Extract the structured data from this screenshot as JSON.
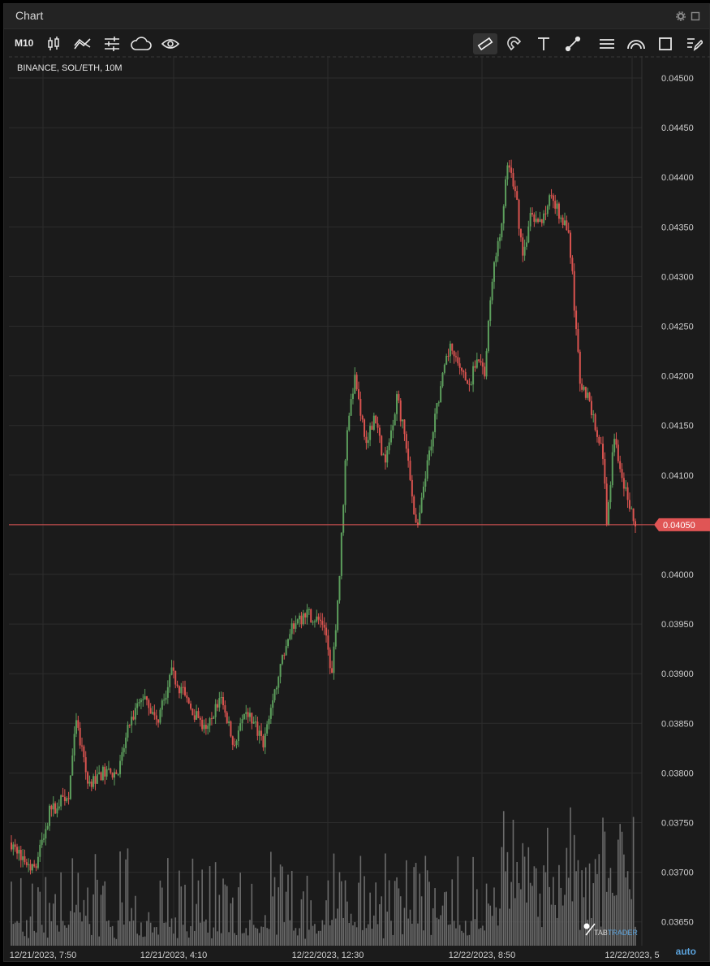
{
  "window": {
    "title": "Chart"
  },
  "toolbar": {
    "interval": "M10",
    "left_tools": [
      "candles-icon",
      "indicators-icon",
      "settings-sliders-icon",
      "cloud-icon",
      "eye-icon"
    ],
    "right_tools": [
      "ruler-icon",
      "magnet-icon",
      "text-icon",
      "line-icon",
      "hlines-icon",
      "arc-icon",
      "rectangle-icon",
      "edit-list-icon"
    ],
    "active_tool": "ruler-icon"
  },
  "chart_data": {
    "type": "candlestick",
    "symbol_label": "BINANCE, SOL/ETH, 10M",
    "y_ticks": [
      "0.04500",
      "0.04450",
      "0.04400",
      "0.04350",
      "0.04300",
      "0.04250",
      "0.04200",
      "0.04150",
      "0.04100",
      "0.04050",
      "0.04000",
      "0.03950",
      "0.03900",
      "0.03850",
      "0.03800",
      "0.03750",
      "0.03700",
      "0.03650"
    ],
    "ylim": [
      0.0363,
      0.04515
    ],
    "x_ticks": [
      "12/21/2023, 7:50",
      "12/21/2023, 4:10",
      "12/22/2023, 12:30",
      "12/22/2023, 8:50",
      "12/22/2023, 5"
    ],
    "current_price": "0.04050",
    "grid": true,
    "colors": {
      "up": "#5c9e5c",
      "down": "#d9534f",
      "volume": "#6b6b6b",
      "price_line": "#e05555",
      "background": "#1b1b1b"
    },
    "price_path": [
      [
        0,
        0.0373
      ],
      [
        12,
        0.037
      ],
      [
        20,
        0.0376
      ],
      [
        30,
        0.0378
      ],
      [
        34,
        0.0385
      ],
      [
        40,
        0.0379
      ],
      [
        48,
        0.038
      ],
      [
        56,
        0.038
      ],
      [
        62,
        0.0385
      ],
      [
        70,
        0.0388
      ],
      [
        76,
        0.0385
      ],
      [
        84,
        0.039
      ],
      [
        90,
        0.0388
      ],
      [
        96,
        0.0386
      ],
      [
        102,
        0.0384
      ],
      [
        110,
        0.0388
      ],
      [
        116,
        0.0383
      ],
      [
        124,
        0.0386
      ],
      [
        132,
        0.0383
      ],
      [
        140,
        0.039
      ],
      [
        148,
        0.0395
      ],
      [
        156,
        0.0396
      ],
      [
        164,
        0.0395
      ],
      [
        168,
        0.039
      ],
      [
        172,
        0.04
      ],
      [
        176,
        0.0415
      ],
      [
        180,
        0.042
      ],
      [
        186,
        0.0413
      ],
      [
        190,
        0.0416
      ],
      [
        196,
        0.0411
      ],
      [
        202,
        0.0418
      ],
      [
        206,
        0.0414
      ],
      [
        212,
        0.0405
      ],
      [
        214,
        0.0406
      ],
      [
        218,
        0.0411
      ],
      [
        224,
        0.0418
      ],
      [
        230,
        0.0423
      ],
      [
        236,
        0.042
      ],
      [
        240,
        0.0419
      ],
      [
        244,
        0.0422
      ],
      [
        248,
        0.042
      ],
      [
        252,
        0.043
      ],
      [
        256,
        0.0434
      ],
      [
        260,
        0.0441
      ],
      [
        264,
        0.0439
      ],
      [
        268,
        0.0432
      ],
      [
        272,
        0.0436
      ],
      [
        276,
        0.0435
      ],
      [
        280,
        0.0437
      ],
      [
        284,
        0.0438
      ],
      [
        288,
        0.0436
      ],
      [
        292,
        0.0434
      ],
      [
        294,
        0.043
      ],
      [
        298,
        0.0419
      ],
      [
        302,
        0.0418
      ],
      [
        306,
        0.0415
      ],
      [
        310,
        0.0412
      ],
      [
        312,
        0.0405
      ],
      [
        316,
        0.0414
      ],
      [
        320,
        0.041
      ],
      [
        324,
        0.0407
      ],
      [
        327,
        0.0405
      ]
    ],
    "candle_count": 328
  },
  "footer": {
    "auto_label": "auto",
    "watermark": "TABTRADER"
  }
}
